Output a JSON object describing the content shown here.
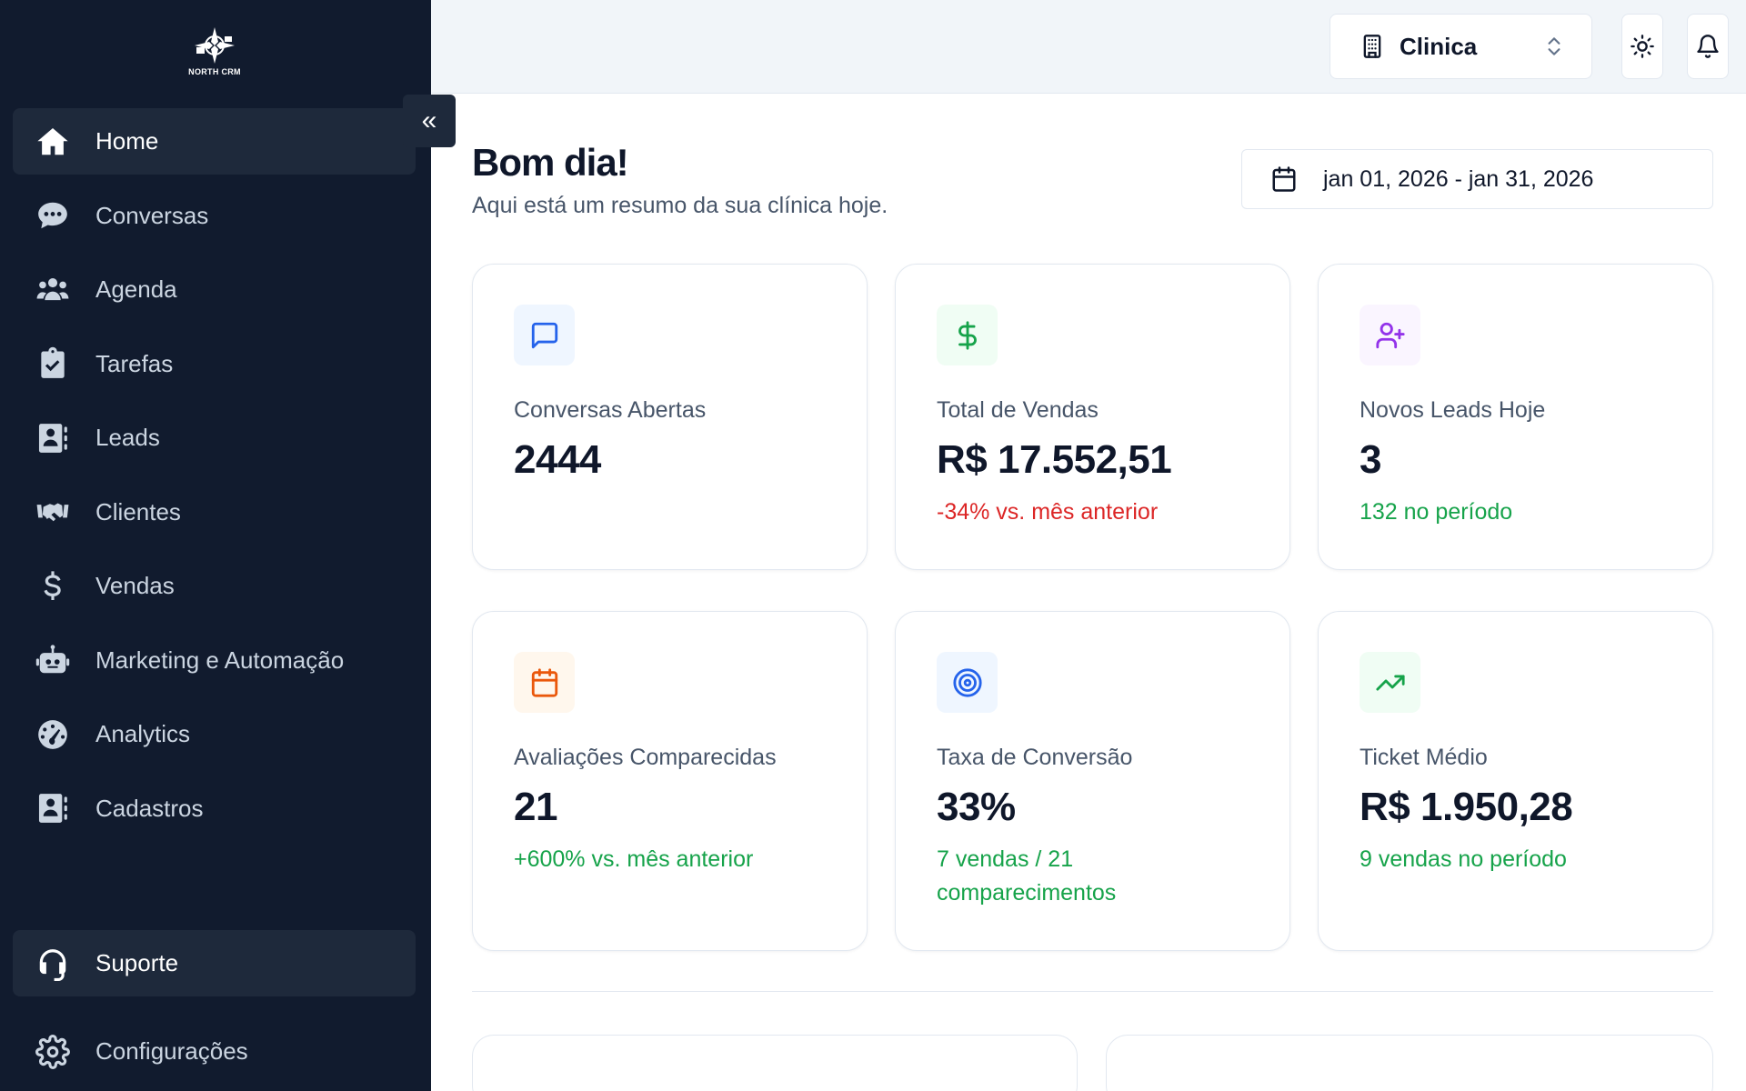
{
  "brand": {
    "name": "NORTH CRM"
  },
  "sidebar": {
    "items": [
      {
        "label": "Home",
        "icon": "home-icon",
        "active": true
      },
      {
        "label": "Conversas",
        "icon": "chat-icon"
      },
      {
        "label": "Agenda",
        "icon": "users-icon"
      },
      {
        "label": "Tarefas",
        "icon": "clipboard-check-icon"
      },
      {
        "label": "Leads",
        "icon": "contact-card-icon"
      },
      {
        "label": "Clientes",
        "icon": "handshake-icon"
      },
      {
        "label": "Vendas",
        "icon": "dollar-icon"
      },
      {
        "label": "Marketing e Automação",
        "icon": "robot-icon"
      },
      {
        "label": "Analytics",
        "icon": "gauge-icon"
      },
      {
        "label": "Cadastros",
        "icon": "contact-card-icon"
      }
    ],
    "support": {
      "label": "Suporte",
      "icon": "headset-icon"
    },
    "settings": {
      "label": "Configurações",
      "icon": "gear-icon"
    },
    "collapse_glyph": "«"
  },
  "header": {
    "clinic": "Clinica"
  },
  "main": {
    "greeting": "Bom dia!",
    "subtitle": "Aqui está um resumo da sua clínica hoje.",
    "date_range": "jan 01, 2026 - jan 31, 2026"
  },
  "cards": [
    {
      "label": "Conversas Abertas",
      "value": "2444",
      "note": "",
      "icon": "message-square-icon",
      "accent": "#2563eb",
      "bg": "#eff6ff"
    },
    {
      "label": "Total de Vendas",
      "value": "R$ 17.552,51",
      "note": "-34% vs. mês anterior",
      "note_color": "red",
      "icon": "dollar-sign-icon",
      "accent": "#16a34a",
      "bg": "#f0fdf4"
    },
    {
      "label": "Novos Leads Hoje",
      "value": "3",
      "note": "132 no período",
      "note_color": "green",
      "icon": "user-plus-icon",
      "accent": "#9333ea",
      "bg": "#faf5ff"
    },
    {
      "label": "Avaliações Comparecidas",
      "value": "21",
      "note": "+600% vs. mês anterior",
      "note_color": "green",
      "icon": "calendar-icon",
      "accent": "#ea580c",
      "bg": "#fff7ed"
    },
    {
      "label": "Taxa de Conversão",
      "value": "33%",
      "note": "7 vendas / 21 comparecimentos",
      "note_color": "green",
      "icon": "target-icon",
      "accent": "#2563eb",
      "bg": "#eff6ff"
    },
    {
      "label": "Ticket Médio",
      "value": "R$ 1.950,28",
      "note": "9 vendas no período",
      "note_color": "green",
      "icon": "trending-up-icon",
      "accent": "#16a34a",
      "bg": "#f0fdf4"
    }
  ]
}
